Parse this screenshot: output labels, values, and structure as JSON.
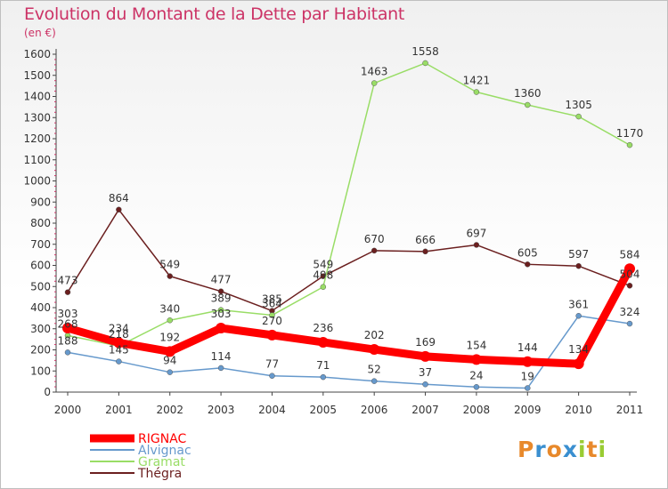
{
  "chart_data": {
    "type": "line",
    "title": "Evolution du Montant de la Dette par Habitant",
    "subtitle": "(en €)",
    "x": [
      "2000",
      "2001",
      "2002",
      "2003",
      "2004",
      "2005",
      "2006",
      "2007",
      "2008",
      "2009",
      "2010",
      "2011"
    ],
    "ylim": [
      0,
      1600
    ],
    "yticks": [
      0,
      100,
      200,
      300,
      400,
      500,
      600,
      700,
      800,
      900,
      1000,
      1100,
      1200,
      1300,
      1400,
      1500,
      1600
    ],
    "grid": false,
    "legend_position": "bottom-left",
    "series": [
      {
        "name": "Thégra",
        "color": "#6b1f1f",
        "values": [
          473,
          864,
          549,
          477,
          385,
          549,
          670,
          666,
          697,
          605,
          597,
          504
        ]
      },
      {
        "name": "Gramat",
        "color": "#99dd66",
        "values": [
          268,
          218,
          340,
          389,
          364,
          498,
          1463,
          1558,
          1421,
          1360,
          1305,
          1170
        ]
      },
      {
        "name": "Alvignac",
        "color": "#6699cc",
        "values": [
          188,
          145,
          94,
          114,
          77,
          71,
          52,
          37,
          24,
          19,
          361,
          324
        ]
      },
      {
        "name": "RIGNAC",
        "color": "#ff0000",
        "values": [
          303,
          234,
          192,
          303,
          270,
          236,
          202,
          169,
          154,
          144,
          134,
          584
        ]
      }
    ]
  },
  "legend": [
    "RIGNAC",
    "Alvignac",
    "Gramat",
    "Thégra"
  ],
  "logo": {
    "letters": [
      "P",
      "r",
      "o",
      "x",
      "i",
      "t",
      "i"
    ],
    "colors": [
      "#e8892b",
      "#3a8fd0",
      "#e8892b",
      "#3a8fd0",
      "#99cc33",
      "#e8892b",
      "#99cc33"
    ]
  }
}
